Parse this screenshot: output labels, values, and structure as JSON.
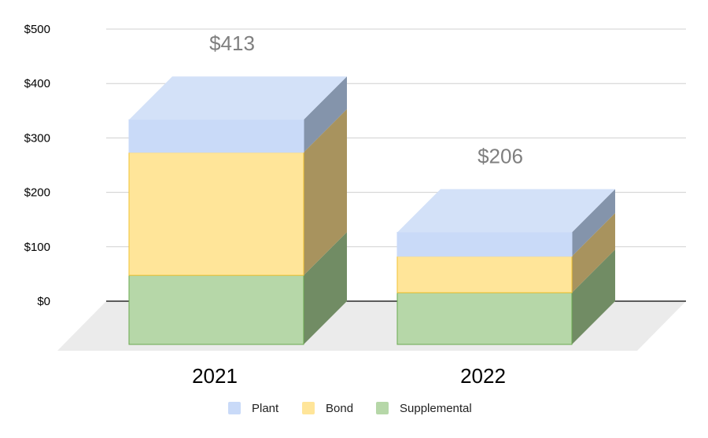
{
  "chart_data": {
    "type": "bar",
    "style": "3d-stacked",
    "title": "",
    "xlabel": "",
    "ylabel": "",
    "categories": [
      "2021",
      "2022"
    ],
    "series": [
      {
        "name": "Supplemental",
        "values": [
          127,
          95
        ],
        "color": "#b6d7a8",
        "border": "#6aa84f",
        "side": "#718c64"
      },
      {
        "name": "Bond",
        "values": [
          226,
          67
        ],
        "color": "#ffe599",
        "border": "#f1c232",
        "side": "#a8935e"
      },
      {
        "name": "Plant",
        "values": [
          60,
          44
        ],
        "color": "#c9daf8",
        "border": "#c9daf8",
        "side": "#8494ab",
        "top": "#d3e1f8"
      }
    ],
    "totals": [
      "$413",
      "$206"
    ],
    "ylim": [
      0,
      500
    ],
    "yticks": [
      0,
      100,
      200,
      300,
      400,
      500
    ],
    "ytick_labels": [
      "$0",
      "$100",
      "$200",
      "$300",
      "$400",
      "$500"
    ],
    "grid": true,
    "legend": {
      "position": "bottom",
      "entries": [
        "Plant",
        "Bond",
        "Supplemental"
      ]
    }
  }
}
